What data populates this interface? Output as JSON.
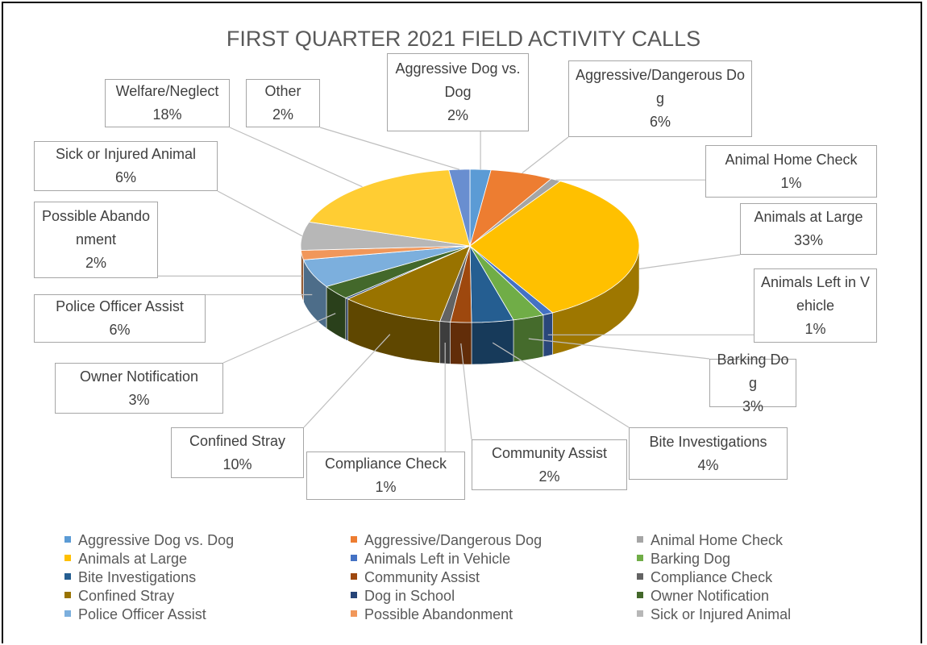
{
  "chart_data": {
    "type": "pie3d",
    "title": "FIRST QUARTER 2021 FIELD ACTIVITY CALLS",
    "categories": [
      "Aggressive Dog vs. Dog",
      "Aggressive/Dangerous Dog",
      "Animal Home Check",
      "Animals at Large",
      "Animals Left in Vehicle",
      "Barking Dog",
      "Bite Investigations",
      "Community Assist",
      "Compliance Check",
      "Confined Stray",
      "Dog in School",
      "Owner Notification",
      "Police Officer Assist",
      "Possible Abandonment",
      "Sick or Injured Animal",
      "Welfare/Neglect",
      "Other"
    ],
    "values": [
      2,
      6,
      1,
      33,
      1,
      3,
      4,
      2,
      1,
      10,
      0.3,
      3,
      6,
      2,
      6,
      18,
      2
    ],
    "value_labels": [
      "2%",
      "6%",
      "1%",
      "33%",
      "1%",
      "3%",
      "4%",
      "2%",
      "1%",
      "10%",
      null,
      "3%",
      "6%",
      "2%",
      "6%",
      "18%",
      "2%"
    ],
    "colors": [
      "#5b9bd5",
      "#ed7d31",
      "#a5a5a5",
      "#ffc000",
      "#4472c4",
      "#70ad47",
      "#255e91",
      "#9e480e",
      "#636363",
      "#997300",
      "#264478",
      "#43682b",
      "#7cafdd",
      "#f1975a",
      "#b7b7b7",
      "#ffcd33",
      "#698ed0"
    ],
    "legend": [
      "Aggressive Dog vs. Dog",
      "Aggressive/Dangerous Dog",
      "Animal Home Check",
      "Animals at Large",
      "Animals Left in Vehicle",
      "Barking Dog",
      "Bite Investigations",
      "Community Assist",
      "Compliance Check",
      "Confined Stray",
      "Dog in School",
      "Owner Notification",
      "Police Officer Assist",
      "Possible Abandonment",
      "Sick or Injured Animal"
    ]
  }
}
